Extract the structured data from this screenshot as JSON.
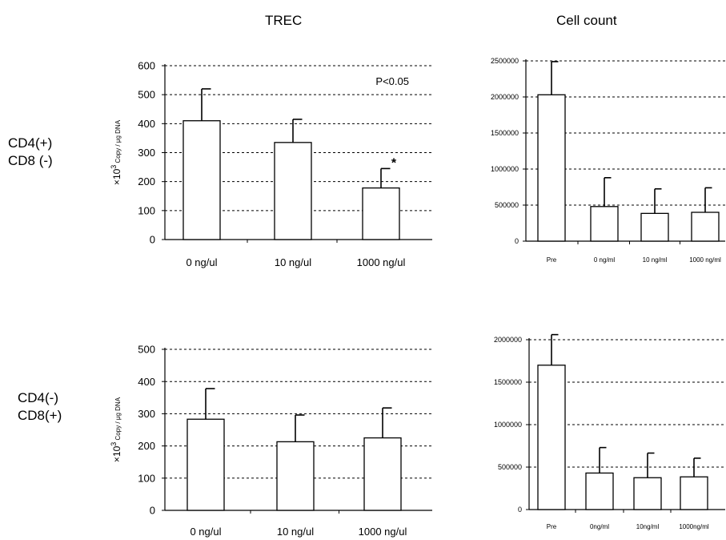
{
  "titles": {
    "trec": "TREC",
    "cell": "Cell count"
  },
  "rows": [
    {
      "line1": "CD4(+)",
      "line2": "CD8 (-)"
    },
    {
      "line1": "CD4(-)",
      "line2": "CD8(+)"
    }
  ],
  "chart_data": [
    {
      "type": "bar",
      "id": "trec-cd4",
      "ylabel_prefix": "×10",
      "ylabel_exp": "3",
      "ylabel_unit": "Copy / μg DNA",
      "ylim": [
        0,
        600
      ],
      "yticks": [
        "0",
        "100",
        "200",
        "300",
        "400",
        "500",
        "600"
      ],
      "categories": [
        "0 ng/ul",
        "10 ng/ul",
        "1000 ng/ul"
      ],
      "values": [
        410,
        335,
        178
      ],
      "errors": [
        110,
        80,
        67
      ],
      "marks": [
        "",
        "",
        "*"
      ],
      "annotation": "P<0.05",
      "grid": true
    },
    {
      "type": "bar",
      "id": "cell-cd4",
      "ylim": [
        0,
        2500000
      ],
      "yticks": [
        "0",
        "500000",
        "1000000",
        "1500000",
        "2000000",
        "2500000"
      ],
      "categories": [
        "Pre",
        "0 ng/ml",
        "10 ng/ml",
        "1000 ng/ml"
      ],
      "values": [
        2030000,
        480000,
        385000,
        400000
      ],
      "errors": [
        460000,
        400000,
        340000,
        340000
      ],
      "grid": true
    },
    {
      "type": "bar",
      "id": "trec-cd8",
      "ylabel_prefix": "×10",
      "ylabel_exp": "3",
      "ylabel_unit": "Copy / μg DNA",
      "ylim": [
        0,
        500
      ],
      "yticks": [
        "0",
        "100",
        "200",
        "300",
        "400",
        "500"
      ],
      "categories": [
        "0 ng/ul",
        "10 ng/ul",
        "1000 ng/ul"
      ],
      "values": [
        283,
        213,
        225
      ],
      "errors": [
        95,
        83,
        93
      ],
      "grid": true
    },
    {
      "type": "bar",
      "id": "cell-cd8",
      "ylim": [
        0,
        2000000
      ],
      "yticks": [
        "0",
        "500000",
        "1000000",
        "1500000",
        "2000000"
      ],
      "categories": [
        "Pre",
        "0ng/ml",
        "10ng/ml",
        "1000ng/ml"
      ],
      "values": [
        1700000,
        430000,
        375000,
        385000
      ],
      "errors": [
        360000,
        300000,
        290000,
        220000
      ],
      "grid": true
    }
  ]
}
